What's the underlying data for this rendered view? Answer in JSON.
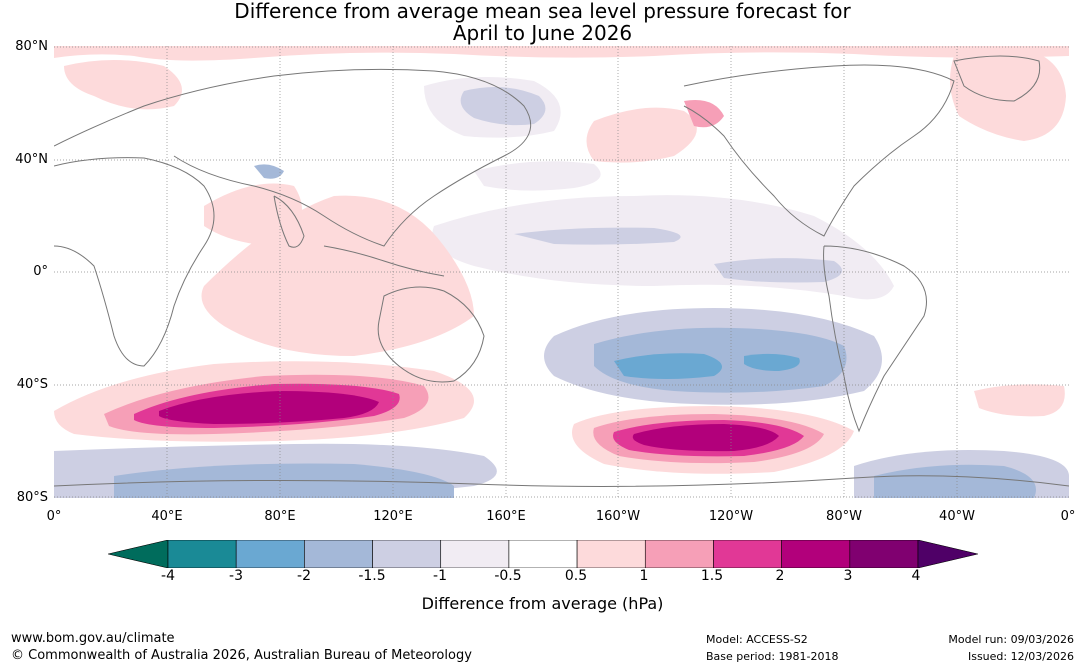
{
  "title": {
    "line1": "Difference from average mean sea level pressure forecast for",
    "line2": "April to June 2026"
  },
  "map": {
    "lat_labels": [
      "80°N",
      "40°N",
      "0°",
      "40°S",
      "80°S"
    ],
    "lon_labels": [
      "0°",
      "40°E",
      "80°E",
      "120°E",
      "160°E",
      "160°W",
      "120°W",
      "80°W",
      "40°W",
      "0°"
    ]
  },
  "colorbar": {
    "title": "Difference from average (hPa)",
    "ticks": [
      "-4",
      "-3",
      "-2",
      "-1.5",
      "-1",
      "-0.5",
      "0.5",
      "1",
      "1.5",
      "2",
      "3",
      "4"
    ],
    "colors": [
      "#1a8a96",
      "#6aa8d2",
      "#a4b8d8",
      "#cdcfe3",
      "#f1ecf3",
      "#ffffff",
      "#fddadb",
      "#f69fb7",
      "#e13896",
      "#b2007b",
      "#800070"
    ],
    "extend_low": "#006c5c",
    "extend_high": "#4f0067"
  },
  "footer": {
    "website": "www.bom.gov.au/climate",
    "copyright": "© Commonwealth of Australia 2026, Australian Bureau of Meteorology",
    "model": "Model: ACCESS-S2",
    "base_period": "Base period: 1981-2018",
    "model_run": "Model run: 09/03/2026",
    "issued": "Issued: 12/03/2026"
  }
}
